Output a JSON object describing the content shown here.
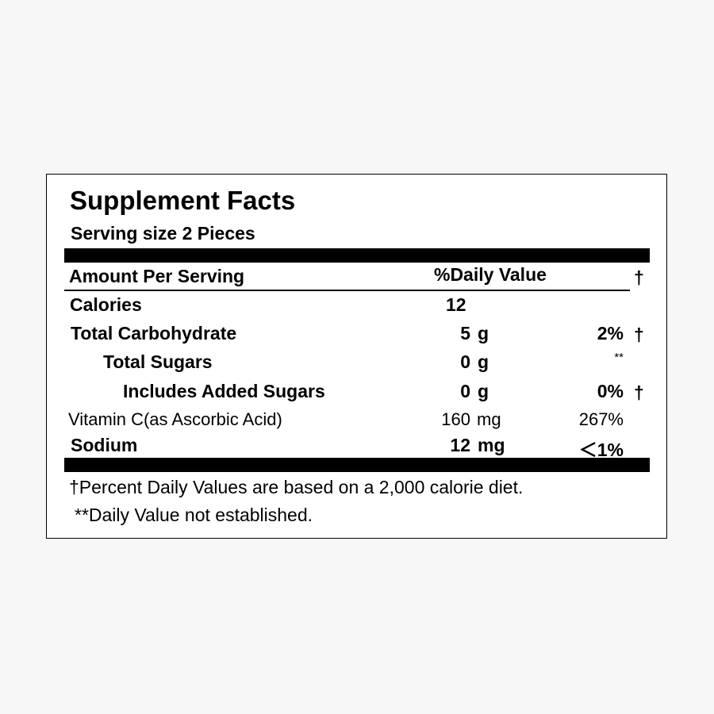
{
  "label": {
    "title": "Supplement Facts",
    "serving_size": "Serving size 2 Pieces",
    "header": {
      "amount_per_serving": "Amount Per Serving",
      "daily_value": "%Daily Value",
      "dagger": "†"
    },
    "rows": [
      {
        "name": "Calories",
        "amount": "12",
        "unit": "",
        "dv": "",
        "mark": ""
      },
      {
        "name": "Total Carbohydrate",
        "amount": "5",
        "unit": "g",
        "dv": "2%",
        "mark": "†"
      },
      {
        "name": "Total Sugars",
        "amount": "0",
        "unit": "g",
        "dv": "**",
        "mark": ""
      },
      {
        "name": "Includes Added Sugars",
        "amount": "0",
        "unit": "g",
        "dv": "0%",
        "mark": "†"
      },
      {
        "name": "Vitamin C(as Ascorbic Acid)",
        "amount": "160",
        "unit": "mg",
        "dv": "267%",
        "mark": ""
      },
      {
        "name": "Sodium",
        "amount": "12",
        "unit": "mg",
        "dv": "＜1%",
        "mark": ""
      }
    ],
    "footnotes": [
      "†Percent Daily Values are based on a 2,000 calorie diet.",
      "**Daily Value not established."
    ]
  }
}
